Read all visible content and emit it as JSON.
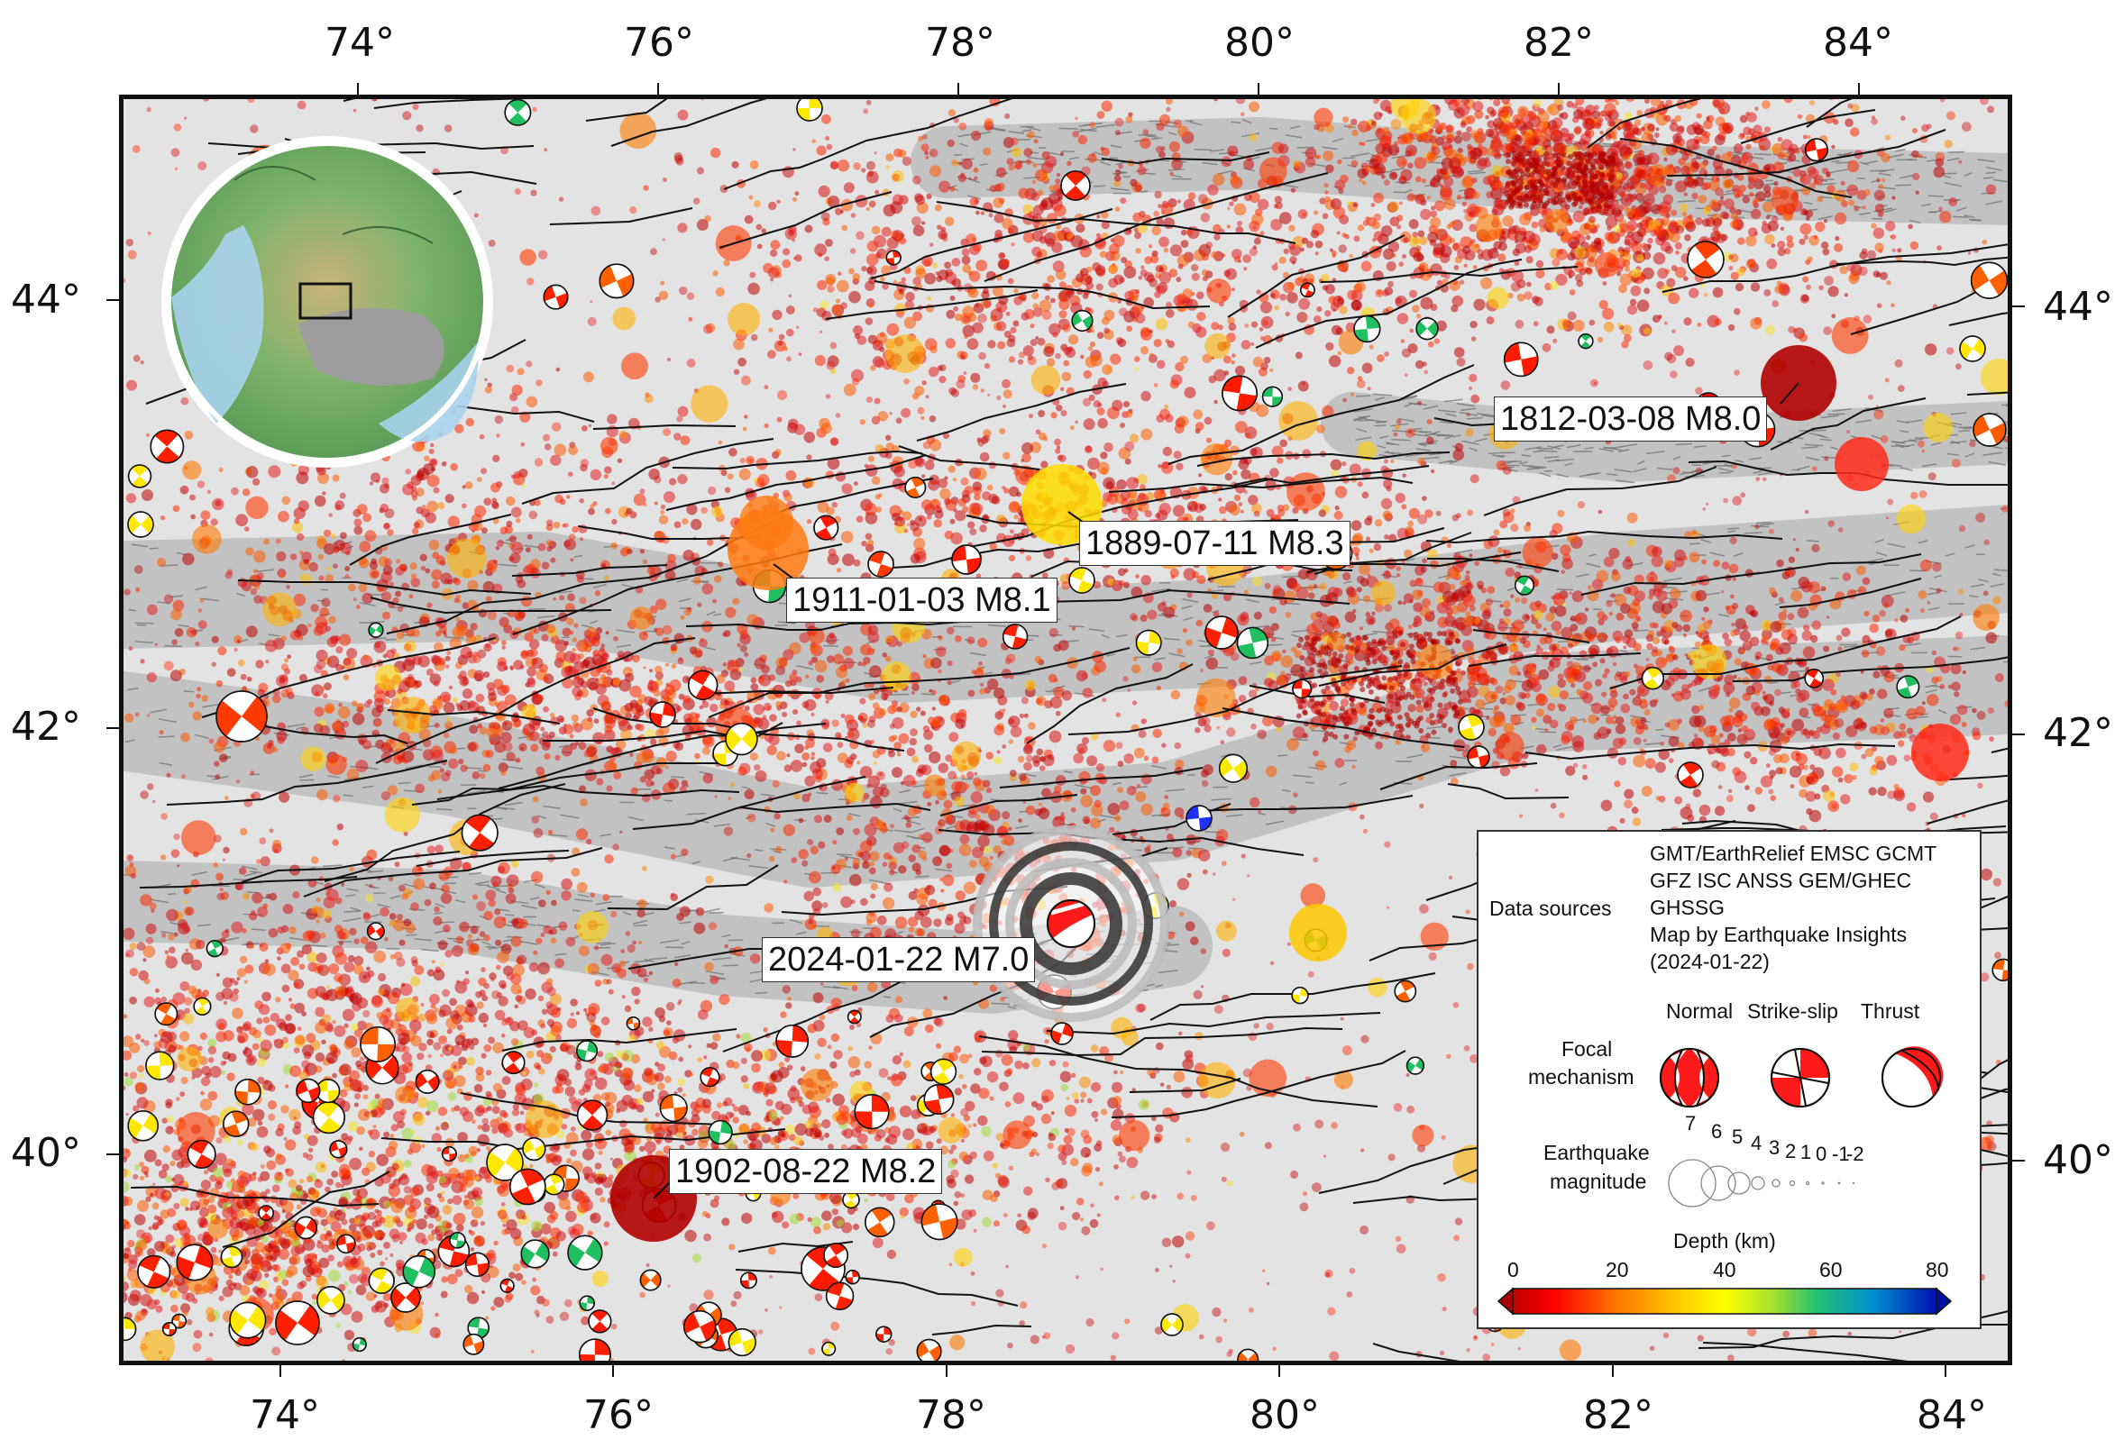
{
  "map": {
    "lon_ticks_top": [
      "74°",
      "76°",
      "78°",
      "80°",
      "82°",
      "84°"
    ],
    "lon_ticks_bottom": [
      "74°",
      "76°",
      "78°",
      "80°",
      "82°",
      "84°"
    ],
    "lat_ticks_left": [
      "44°",
      "42°",
      "40°"
    ],
    "lat_ticks_right": [
      "44°",
      "42°",
      "40°"
    ],
    "annotations": [
      {
        "id": "eq1812",
        "text": "1812-03-08 M8.0"
      },
      {
        "id": "eq1889",
        "text": "1889-07-11 M8.3"
      },
      {
        "id": "eq1911",
        "text": "1911-01-03 M8.1"
      },
      {
        "id": "eq2024",
        "text": "2024-01-22 M7.0"
      },
      {
        "id": "eq1902",
        "text": "1902-08-22 M8.2"
      }
    ],
    "colors": {
      "background_terrain": "#e3e3e3",
      "mountain_shade": "#9a9a9a",
      "fault_line": "#111111",
      "ocean": "#8fc6e8",
      "land_low": "#6fae5c",
      "land_high": "#b9a36a"
    }
  },
  "legend": {
    "data_sources_label": "Data sources",
    "data_sources_lines": [
      "GMT/EarthRelief EMSC GCMT",
      "GFZ ISC ANSS GEM/GHEC",
      "GHSSG",
      "Map by Earthquake Insights",
      "(2024-01-22)"
    ],
    "focal_label_1": "Focal",
    "focal_label_2": "mechanism",
    "mechanisms": [
      "Normal",
      "Strike-slip",
      "Thrust"
    ],
    "magnitude_label_1": "Earthquake",
    "magnitude_label_2": "magnitude",
    "magnitudes": [
      "7",
      "6",
      "5",
      "4",
      "3",
      "2",
      "1",
      "0",
      "-1",
      "-2"
    ],
    "depth_title": "Depth (km)",
    "depth_ticks": [
      "0",
      "20",
      "40",
      "60",
      "80"
    ],
    "depth_colors": [
      "#a80000",
      "#ff0000",
      "#ff6a00",
      "#ffc800",
      "#ffff00",
      "#a0e030",
      "#30c060",
      "#00a0c0",
      "#2050ff",
      "#1010a0"
    ]
  }
}
